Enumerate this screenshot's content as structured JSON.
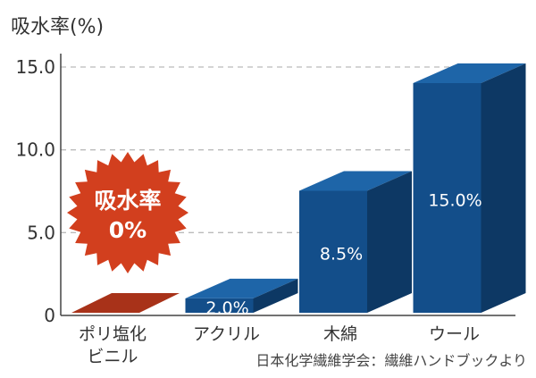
{
  "chart_data": {
    "type": "bar",
    "ylabel": "吸水率(%)",
    "yticks": [
      "0",
      "5.0",
      "10.0",
      "15.0"
    ],
    "ylim": [
      0,
      15
    ],
    "grid": "horizontal dashed",
    "categories": [
      [
        "ポリ塩化",
        "ビニル"
      ],
      [
        "アクリル"
      ],
      [
        "木綿"
      ],
      [
        "ウール"
      ]
    ],
    "values": [
      0,
      2.0,
      8.5,
      15.0
    ],
    "value_labels": [
      "",
      "2.0%",
      "8.5%",
      "15.0%"
    ],
    "highlight": {
      "line1": "吸水率",
      "line2": "0%"
    },
    "source": "日本化学繊維学会：繊維ハンドブックより",
    "colors": {
      "bar_front": "#134E8A",
      "bar_top": "#1E65A8",
      "bar_side": "#0D3864",
      "zero_bar": "#A83219",
      "burst": "#D23F1E",
      "grid": "#BBBBBB",
      "axis": "#444444"
    }
  }
}
